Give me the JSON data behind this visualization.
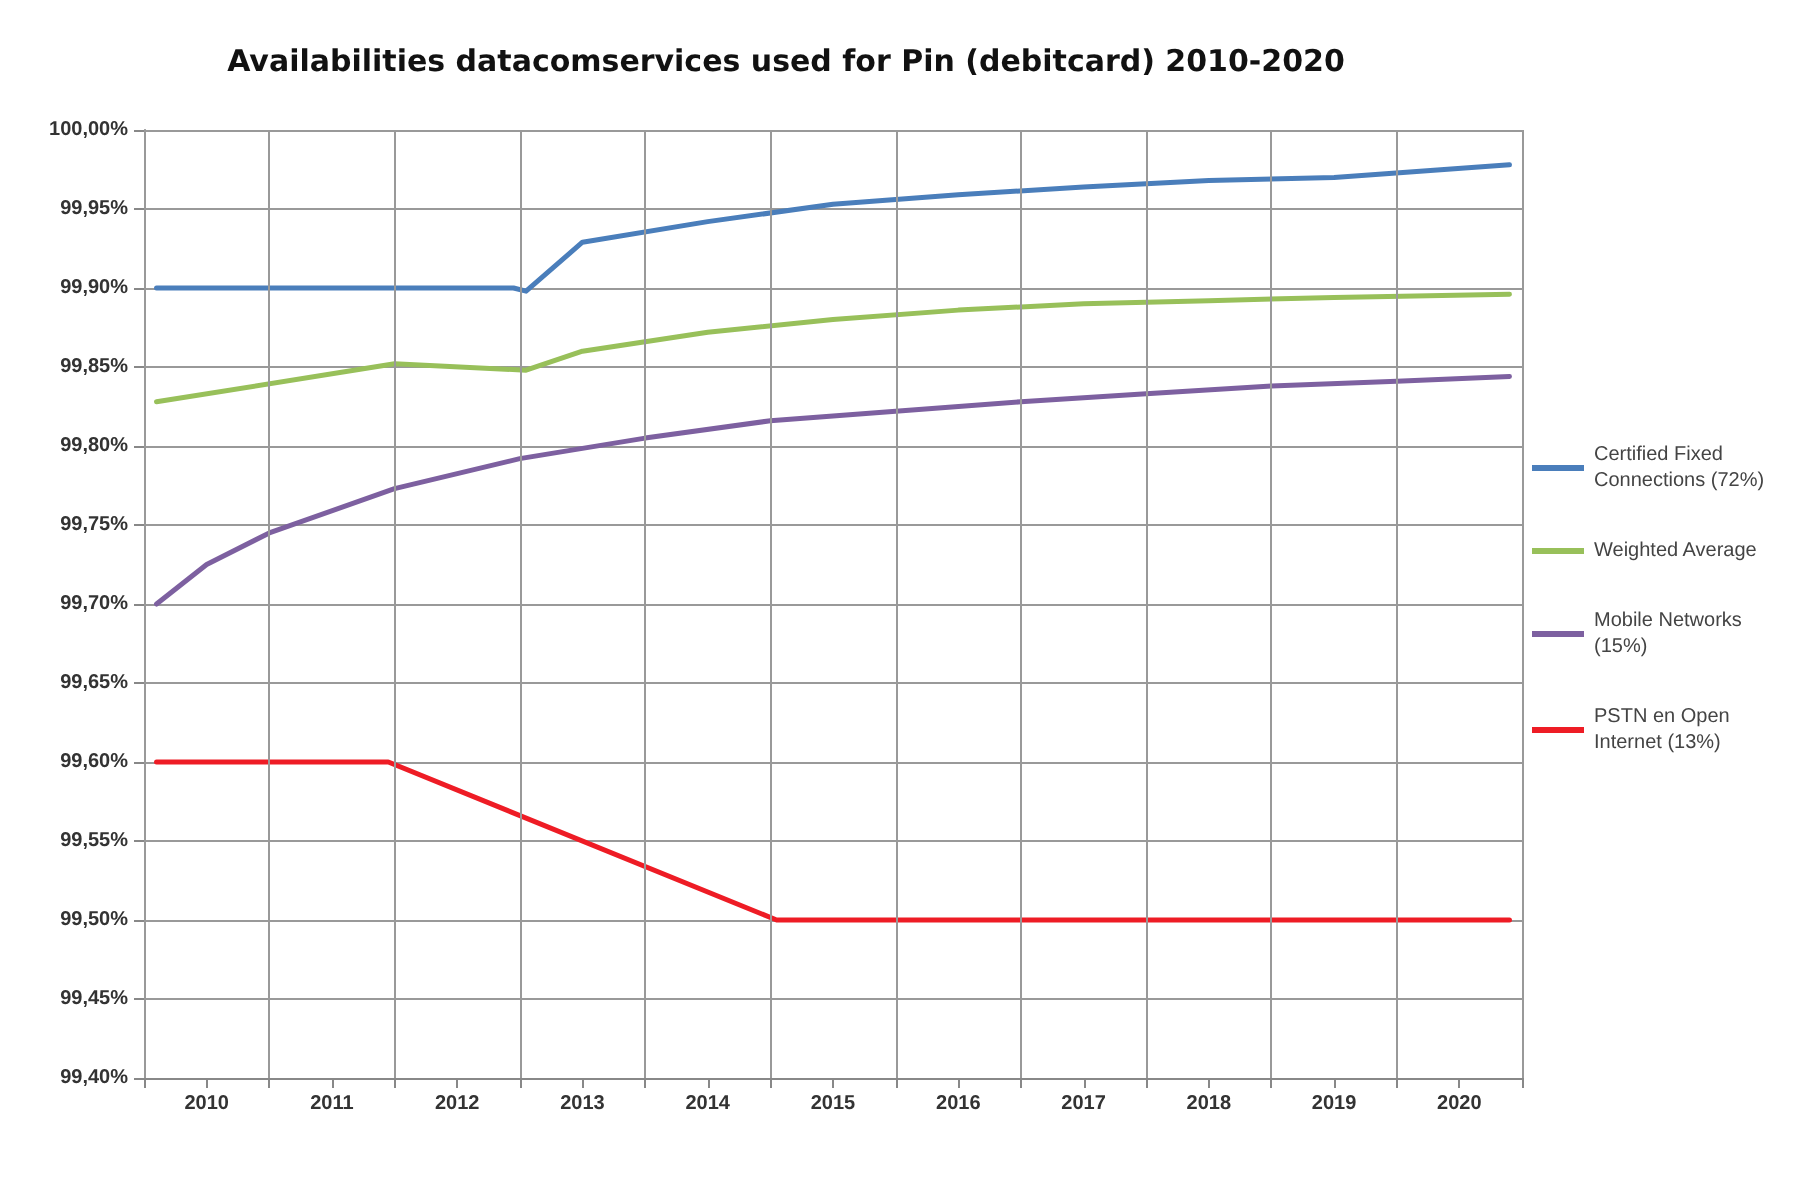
{
  "chart_data": {
    "type": "line",
    "title": "Availabilities datacomservices used for Pin (debitcard) 2010-2020",
    "xlim": [
      2009.5,
      2020.5
    ],
    "xticks": [
      {
        "value": 2009.5,
        "label": null
      },
      {
        "value": 2010,
        "label": "2010"
      },
      {
        "value": 2010.5,
        "label": null
      },
      {
        "value": 2011,
        "label": "2011"
      },
      {
        "value": 2011.5,
        "label": null
      },
      {
        "value": 2012,
        "label": "2012"
      },
      {
        "value": 2012.5,
        "label": null
      },
      {
        "value": 2013,
        "label": "2013"
      },
      {
        "value": 2013.5,
        "label": null
      },
      {
        "value": 2014,
        "label": "2014"
      },
      {
        "value": 2014.5,
        "label": null
      },
      {
        "value": 2015,
        "label": "2015"
      },
      {
        "value": 2015.5,
        "label": null
      },
      {
        "value": 2016,
        "label": "2016"
      },
      {
        "value": 2016.5,
        "label": null
      },
      {
        "value": 2017,
        "label": "2017"
      },
      {
        "value": 2017.5,
        "label": null
      },
      {
        "value": 2018,
        "label": "2018"
      },
      {
        "value": 2018.5,
        "label": null
      },
      {
        "value": 2019,
        "label": "2019"
      },
      {
        "value": 2019.5,
        "label": null
      },
      {
        "value": 2020,
        "label": "2020"
      },
      {
        "value": 2020.5,
        "label": null
      }
    ],
    "ylim": [
      99.4,
      100
    ],
    "yticks": [
      {
        "value": 99.4,
        "label": "99,40%"
      },
      {
        "value": 99.45,
        "label": "99,45%"
      },
      {
        "value": 99.5,
        "label": "99,50%"
      },
      {
        "value": 99.55,
        "label": "99,55%"
      },
      {
        "value": 99.6,
        "label": "99,60%"
      },
      {
        "value": 99.65,
        "label": "99,65%"
      },
      {
        "value": 99.7,
        "label": "99,70%"
      },
      {
        "value": 99.75,
        "label": "99,75%"
      },
      {
        "value": 99.8,
        "label": "99,80%"
      },
      {
        "value": 99.85,
        "label": "99,85%"
      },
      {
        "value": 99.9,
        "label": "99,90%"
      },
      {
        "value": 99.95,
        "label": "99,95%"
      },
      {
        "value": 100,
        "label": "100,00%"
      }
    ],
    "grid": true,
    "legend": "right",
    "marker": "none",
    "line_style": "solid",
    "series": [
      {
        "name": "Certified Fixed Connections (72%)",
        "color": "#4a7ebb",
        "x": [
          2009.6,
          2012.45,
          2012.55,
          2013,
          2014,
          2015,
          2016,
          2017,
          2018,
          2019,
          2020.4
        ],
        "values": [
          99.9,
          99.9,
          99.898,
          99.929,
          99.942,
          99.953,
          99.959,
          99.964,
          99.968,
          99.97,
          99.978
        ]
      },
      {
        "name": "Weighted Average",
        "color": "#98c05a",
        "x": [
          2009.6,
          2011.5,
          2012.55,
          2013,
          2014,
          2015,
          2016,
          2017,
          2018,
          2019,
          2020.4
        ],
        "values": [
          99.828,
          99.852,
          99.848,
          99.86,
          99.872,
          99.88,
          99.886,
          99.89,
          99.892,
          99.894,
          99.896
        ]
      },
      {
        "name": "Mobile Networks (15%)",
        "color": "#7d60a0",
        "x": [
          2009.6,
          2010,
          2010.5,
          2011.5,
          2012.5,
          2013.5,
          2014.5,
          2015.5,
          2016.5,
          2017.5,
          2018.5,
          2019.5,
          2020.4
        ],
        "values": [
          99.7,
          99.725,
          99.745,
          99.773,
          99.792,
          99.805,
          99.816,
          99.822,
          99.828,
          99.833,
          99.838,
          99.841,
          99.844
        ]
      },
      {
        "name": "PSTN en Open Internet (13%)",
        "color": "#ee1c25",
        "x": [
          2009.6,
          2011.45,
          2014.55,
          2020.4
        ],
        "values": [
          99.6,
          99.6,
          99.5,
          99.5
        ]
      }
    ]
  }
}
